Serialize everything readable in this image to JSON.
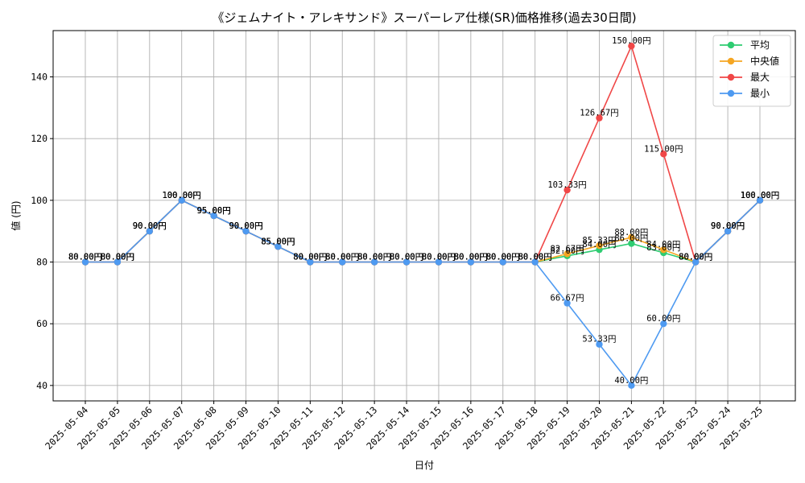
{
  "chart_data": {
    "type": "line",
    "title": "《ジェムナイト・アレキサンド》スーパーレア仕様(SR)価格推移(過去30日間)",
    "xlabel": "日付",
    "ylabel": "値 (円)",
    "categories": [
      "2025-05-04",
      "2025-05-05",
      "2025-05-06",
      "2025-05-07",
      "2025-05-08",
      "2025-05-09",
      "2025-05-10",
      "2025-05-11",
      "2025-05-12",
      "2025-05-13",
      "2025-05-14",
      "2025-05-15",
      "2025-05-16",
      "2025-05-17",
      "2025-05-18",
      "2025-05-19",
      "2025-05-20",
      "2025-05-21",
      "2025-05-22",
      "2025-05-23",
      "2025-05-24",
      "2025-05-25"
    ],
    "ylim": [
      35,
      155
    ],
    "yticks": [
      40,
      60,
      80,
      100,
      120,
      140
    ],
    "grid": true,
    "legend_position": "top-right",
    "value_suffix": "円",
    "series": [
      {
        "name": "平均",
        "color": "#2ecc71",
        "values": [
          80,
          80,
          90,
          100,
          95,
          90,
          85,
          80,
          80,
          80,
          80,
          80,
          80,
          80,
          80,
          82,
          84,
          86,
          83,
          80,
          90,
          100
        ],
        "labels": [
          "80.00円",
          "80.00円",
          "90.00円",
          "100.00円",
          "95.00円",
          "90.00円",
          "85.00円",
          "80.00円",
          "80.00円",
          "80.00円",
          "80.00円",
          "80.00円",
          "80.00円",
          "80.00円",
          "80.00円",
          "82.00円",
          "84.00円",
          "86.00円",
          "83.00円",
          "80.00円",
          "90.00円",
          "100.00円"
        ]
      },
      {
        "name": "中央値",
        "color": "#f5a623",
        "values": [
          80,
          80,
          90,
          100,
          95,
          90,
          85,
          80,
          80,
          80,
          80,
          80,
          80,
          80,
          80,
          82.67,
          85.33,
          88,
          84,
          80,
          90,
          100
        ],
        "labels": [
          "80.00円",
          "80.00円",
          "90.00円",
          "100.00円",
          "95.00円",
          "90.00円",
          "85.00円",
          "80.00円",
          "80.00円",
          "80.00円",
          "80.00円",
          "80.00円",
          "80.00円",
          "80.00円",
          "80.00円",
          "82.67円",
          "85.33円",
          "88.00円",
          "84.00円",
          "80.00円",
          "90.00円",
          "100.00円"
        ]
      },
      {
        "name": "最大",
        "color": "#f04747",
        "values": [
          80,
          80,
          90,
          100,
          95,
          90,
          85,
          80,
          80,
          80,
          80,
          80,
          80,
          80,
          80,
          103.33,
          126.67,
          150,
          115,
          80,
          90,
          100
        ],
        "labels": [
          "80.00円",
          "80.00円",
          "90.00円",
          "100.00円",
          "95.00円",
          "90.00円",
          "85.00円",
          "80.00円",
          "80.00円",
          "80.00円",
          "80.00円",
          "80.00円",
          "80.00円",
          "80.00円",
          "80.00円",
          "103.33円",
          "126.67円",
          "150.00円",
          "115.00円",
          "80.00円",
          "90.00円",
          "100.00円"
        ]
      },
      {
        "name": "最小",
        "color": "#4e9af1",
        "values": [
          80,
          80,
          90,
          100,
          95,
          90,
          85,
          80,
          80,
          80,
          80,
          80,
          80,
          80,
          80,
          66.67,
          53.33,
          40,
          60,
          80,
          90,
          100
        ],
        "labels": [
          "80.00円",
          "80.00円",
          "90.00円",
          "100.00円",
          "95.00円",
          "90.00円",
          "85.00円",
          "80.00円",
          "80.00円",
          "80.00円",
          "80.00円",
          "80.00円",
          "80.00円",
          "80.00円",
          "80.00円",
          "66.67円",
          "53.33円",
          "40.00円",
          "60.00円",
          "80.00円",
          "90.00円",
          "100.00円"
        ]
      }
    ]
  }
}
